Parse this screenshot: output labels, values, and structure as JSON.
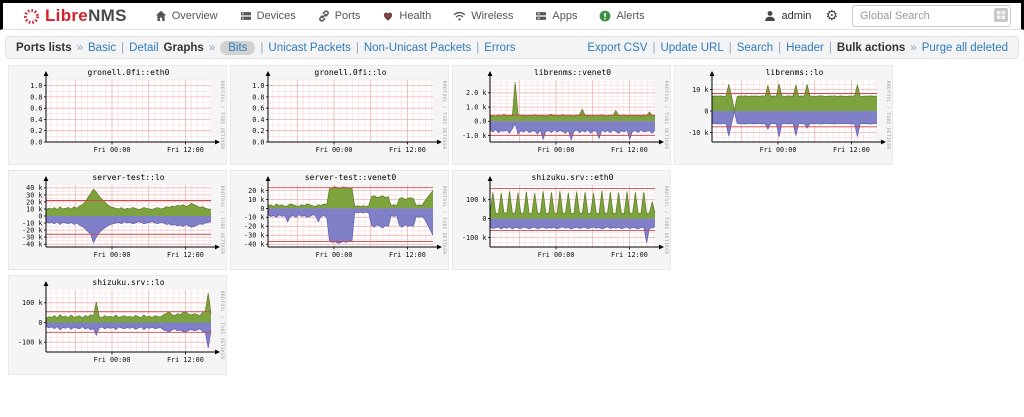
{
  "navbar": {
    "brand_libre": "Libre",
    "brand_nms": "NMS",
    "items": [
      {
        "label": "Overview",
        "icon": "home-icon"
      },
      {
        "label": "Devices",
        "icon": "devices-icon"
      },
      {
        "label": "Ports",
        "icon": "ports-icon"
      },
      {
        "label": "Health",
        "icon": "health-icon"
      },
      {
        "label": "Wireless",
        "icon": "wireless-icon"
      },
      {
        "label": "Apps",
        "icon": "apps-icon"
      },
      {
        "label": "Alerts",
        "icon": "alerts-icon"
      }
    ],
    "user": "admin",
    "search_placeholder": "Global Search"
  },
  "toolbar": {
    "left": [
      {
        "text": "Ports lists",
        "style": "label"
      },
      {
        "text": "»",
        "style": "sep"
      },
      {
        "text": "Basic",
        "style": "link"
      },
      {
        "text": "|",
        "style": "sep"
      },
      {
        "text": "Detail",
        "style": "link"
      },
      {
        "text": "Graphs",
        "style": "label"
      },
      {
        "text": "»",
        "style": "sep"
      },
      {
        "text": "Bits",
        "style": "active"
      },
      {
        "text": "|",
        "style": "sep"
      },
      {
        "text": "Unicast Packets",
        "style": "link"
      },
      {
        "text": "|",
        "style": "sep"
      },
      {
        "text": "Non-Unicast Packets",
        "style": "link"
      },
      {
        "text": "|",
        "style": "sep"
      },
      {
        "text": "Errors",
        "style": "link"
      }
    ],
    "right": [
      {
        "text": "Export CSV",
        "style": "link"
      },
      {
        "text": "|",
        "style": "sep"
      },
      {
        "text": "Update URL",
        "style": "link"
      },
      {
        "text": "|",
        "style": "sep"
      },
      {
        "text": "Search",
        "style": "link"
      },
      {
        "text": "|",
        "style": "sep"
      },
      {
        "text": "Header",
        "style": "link"
      },
      {
        "text": "|",
        "style": "sep"
      },
      {
        "text": "Bulk actions",
        "style": "label"
      },
      {
        "text": "»",
        "style": "sep"
      },
      {
        "text": "Purge all deleted",
        "style": "link"
      }
    ]
  },
  "colors": {
    "brand_red": "#d4212b",
    "link_blue": "#2e7bbd",
    "traffic_in_green": "#7CA33E",
    "traffic_out_purple": "#8080C8",
    "percentile_red": "#CC4A4A",
    "grid_minor": "#F7DCDC",
    "grid_major": "#F0B4B4",
    "alerts_green": "#3A9143"
  },
  "chart_common": {
    "type": "area",
    "x_ticks": [
      {
        "pos": 0.4,
        "label": "Fri 00:00"
      },
      {
        "pos": 0.845,
        "label": "Fri 12:00"
      }
    ],
    "x_major_grid": [
      0.1775,
      0.4,
      0.6225,
      0.845
    ],
    "watermark": "RRDTOOL / TOBI OETIKER",
    "unit_note": "values in k bits/s; series_in positive (green), series_out negative (purple)"
  },
  "chart_data": [
    {
      "title": "gronell.0fi::eth0",
      "y_ticks": [
        {
          "v": 1.0,
          "l": "1.0"
        },
        {
          "v": 0.8,
          "l": "0.8"
        },
        {
          "v": 0.6,
          "l": "0.6"
        },
        {
          "v": 0.4,
          "l": "0.4"
        },
        {
          "v": 0.2,
          "l": "0.2"
        },
        {
          "v": 0.0,
          "l": "0.0"
        }
      ],
      "ylim": [
        0,
        1.1
      ],
      "y_minor": 0.1,
      "red_lines": [],
      "series_in": [],
      "series_out": []
    },
    {
      "title": "gronell.0fi::lo",
      "y_ticks": [
        {
          "v": 1.0,
          "l": "1.0"
        },
        {
          "v": 0.8,
          "l": "0.8"
        },
        {
          "v": 0.6,
          "l": "0.6"
        },
        {
          "v": 0.4,
          "l": "0.4"
        },
        {
          "v": 0.2,
          "l": "0.2"
        },
        {
          "v": 0.0,
          "l": "0.0"
        }
      ],
      "ylim": [
        0,
        1.1
      ],
      "y_minor": 0.1,
      "red_lines": [],
      "series_in": [],
      "series_out": []
    },
    {
      "title": "librenms::venet0",
      "y_ticks": [
        {
          "v": 2.0,
          "l": "2.0 k"
        },
        {
          "v": 1.0,
          "l": "1.0 k"
        },
        {
          "v": 0.0,
          "l": "0.0"
        },
        {
          "v": -1.0,
          "l": "-1.0 k"
        }
      ],
      "ylim": [
        -1.45,
        2.9
      ],
      "y_minor": 0.25,
      "red_lines": [
        0.43,
        -0.98
      ],
      "series_in": [
        0.35,
        0.4,
        0.32,
        0.45,
        0.38,
        0.5,
        0.36,
        0.42,
        0.4,
        2.75,
        0.5,
        0.38,
        0.45,
        0.35,
        0.42,
        0.38,
        0.48,
        0.36,
        0.44,
        0.4,
        0.35,
        0.45,
        0.5,
        0.38,
        0.42,
        0.36,
        0.48,
        0.4,
        0.44,
        0.38,
        0.35,
        0.42,
        0.46,
        0.85,
        0.4,
        0.38,
        0.44,
        0.36,
        0.42,
        0.4,
        0.46,
        0.38,
        0.35,
        0.44,
        0.4,
        0.75,
        0.42,
        0.38,
        0.45,
        0.36,
        0.4,
        0.44,
        0.38,
        0.42,
        0.36,
        0.45,
        0.4,
        0.65,
        0.42,
        0.38
      ],
      "series_out": [
        -0.6,
        -0.75,
        -0.55,
        -0.8,
        -0.65,
        -0.7,
        -0.6,
        -0.85,
        -0.5,
        -0.15,
        -0.9,
        -0.65,
        -0.75,
        -0.6,
        -0.8,
        -0.7,
        -0.65,
        -0.9,
        -0.6,
        -1.25,
        -0.7,
        -0.65,
        -0.8,
        -0.6,
        -0.75,
        -0.65,
        -0.7,
        -0.85,
        -0.6,
        -1.3,
        -0.7,
        -0.6,
        -0.8,
        -0.65,
        -0.75,
        -0.6,
        -0.85,
        -0.65,
        -0.7,
        -1.2,
        -0.6,
        -0.75,
        -0.65,
        -0.8,
        -0.6,
        -0.7,
        -0.85,
        -0.65,
        -0.75,
        -0.6,
        -1.25,
        -0.7,
        -0.65,
        -0.8,
        -0.6,
        -0.75,
        -0.7,
        -0.65,
        -0.85,
        -0.6
      ]
    },
    {
      "title": "librenms::lo",
      "y_ticks": [
        {
          "v": 10,
          "l": "10 k"
        },
        {
          "v": 0,
          "l": "0"
        },
        {
          "v": -10,
          "l": "-10 k"
        }
      ],
      "ylim": [
        -14.5,
        14.5
      ],
      "y_minor": 2.5,
      "red_lines": [
        8.2,
        -7.4
      ],
      "series_in": [
        6.8,
        7.0,
        6.9,
        7.1,
        6.8,
        7.0,
        12.5,
        6.9,
        0.3,
        6.8,
        7.0,
        6.9,
        7.1,
        6.8,
        7.0,
        6.9,
        7.0,
        6.8,
        7.1,
        6.9,
        12.0,
        6.8,
        7.0,
        6.9,
        12.6,
        7.0,
        6.8,
        7.1,
        6.9,
        7.0,
        12.2,
        6.8,
        7.0,
        6.9,
        12.4,
        7.0,
        6.9,
        6.8,
        7.0,
        7.1,
        6.9,
        6.8,
        7.0,
        6.9,
        7.1,
        6.8,
        7.0,
        6.9,
        6.8,
        7.0,
        6.9,
        7.1,
        12.3,
        6.9,
        6.8,
        7.0,
        6.9,
        7.1,
        6.8,
        7.0
      ],
      "series_out": [
        -5.8,
        -6.0,
        -5.9,
        -6.1,
        -5.8,
        -6.0,
        -11.8,
        -5.9,
        -0.2,
        -5.8,
        -6.0,
        -5.9,
        -6.1,
        -5.8,
        -6.0,
        -5.9,
        -6.0,
        -5.8,
        -6.1,
        -5.9,
        -8.5,
        -5.8,
        -6.0,
        -5.9,
        -12.0,
        -6.0,
        -5.8,
        -6.1,
        -5.9,
        -6.0,
        -11.5,
        -5.8,
        -6.0,
        -5.9,
        -8.0,
        -6.0,
        -5.9,
        -5.8,
        -6.0,
        -6.1,
        -5.9,
        -5.8,
        -6.0,
        -5.9,
        -6.1,
        -5.8,
        -6.0,
        -5.9,
        -5.8,
        -6.0,
        -5.9,
        -6.1,
        -11.9,
        -5.9,
        -5.8,
        -6.0,
        -5.9,
        -6.1,
        -5.8,
        -6.0
      ]
    },
    {
      "title": "server-test::lo",
      "y_ticks": [
        {
          "v": 40,
          "l": "40 k"
        },
        {
          "v": 30,
          "l": "30 k"
        },
        {
          "v": 20,
          "l": "20 k"
        },
        {
          "v": 10,
          "l": "10 k"
        },
        {
          "v": 0,
          "l": "0"
        },
        {
          "v": -10,
          "l": "-10 k"
        },
        {
          "v": -20,
          "l": "-20 k"
        },
        {
          "v": -30,
          "l": "-30 k"
        },
        {
          "v": -40,
          "l": "-40 k"
        }
      ],
      "ylim": [
        -44,
        44
      ],
      "y_minor": 5,
      "red_lines": [
        22,
        -26
      ],
      "series_in": [
        9,
        11,
        10,
        12,
        9,
        13,
        10,
        11,
        12,
        10,
        13,
        11,
        14,
        16,
        20,
        26,
        32,
        38,
        34,
        28,
        24,
        20,
        16,
        13,
        12,
        11,
        10,
        12,
        9,
        11,
        10,
        12,
        11,
        9,
        10,
        12,
        11,
        10,
        9,
        11,
        12,
        10,
        11,
        13,
        12,
        14,
        13,
        15,
        14,
        16,
        13,
        15,
        18,
        16,
        14,
        12,
        13,
        11,
        10,
        9
      ],
      "series_out": [
        -8,
        -10,
        -9,
        -11,
        -8,
        -12,
        -9,
        -10,
        -11,
        -9,
        -12,
        -10,
        -13,
        -15,
        -18,
        -22,
        -26,
        -38,
        -30,
        -24,
        -20,
        -17,
        -14,
        -12,
        -11,
        -10,
        -9,
        -11,
        -8,
        -10,
        -9,
        -11,
        -10,
        -8,
        -9,
        -11,
        -10,
        -9,
        -8,
        -10,
        -11,
        -9,
        -10,
        -12,
        -11,
        -13,
        -12,
        -14,
        -13,
        -15,
        -12,
        -14,
        -16,
        -15,
        -13,
        -11,
        -12,
        -10,
        -9,
        -8
      ]
    },
    {
      "title": "server-test::venet0",
      "y_ticks": [
        {
          "v": 20,
          "l": "20 k"
        },
        {
          "v": 10,
          "l": "10 k"
        },
        {
          "v": 0,
          "l": "0"
        },
        {
          "v": -10,
          "l": "-10 k"
        },
        {
          "v": -20,
          "l": "-20 k"
        },
        {
          "v": -30,
          "l": "-30 k"
        },
        {
          "v": -40,
          "l": "-40 k"
        }
      ],
      "ylim": [
        -43,
        26
      ],
      "y_minor": 5,
      "red_lines": [
        23,
        -37
      ],
      "series_in": [
        3,
        4,
        2,
        5,
        3,
        4,
        2,
        3,
        5,
        4,
        3,
        2,
        4,
        3,
        5,
        4,
        3,
        2,
        4,
        3,
        5,
        4,
        22,
        23,
        24,
        23,
        22,
        24,
        23,
        22,
        23,
        2,
        3,
        2,
        3,
        2,
        3,
        13,
        14,
        12,
        13,
        14,
        12,
        13,
        3,
        4,
        3,
        11,
        12,
        10,
        11,
        12,
        11,
        3,
        4,
        3,
        8,
        12,
        16,
        20
      ],
      "series_out": [
        -7,
        -9,
        -8,
        -10,
        -7,
        -9,
        -8,
        -15,
        -9,
        -8,
        -10,
        -7,
        -9,
        -8,
        -10,
        -9,
        -7,
        -8,
        -15,
        -9,
        -8,
        -10,
        -36,
        -38,
        -37,
        -39,
        -38,
        -37,
        -38,
        -36,
        -37,
        -4,
        -5,
        -4,
        -5,
        -4,
        -5,
        -19,
        -21,
        -18,
        -20,
        -22,
        -19,
        -20,
        -8,
        -9,
        -8,
        -19,
        -21,
        -18,
        -20,
        -19,
        -20,
        -9,
        -10,
        -9,
        -12,
        -18,
        -24,
        -30
      ]
    },
    {
      "title": "shizuku.srv::eth0",
      "y_ticks": [
        {
          "v": 100,
          "l": "100 k"
        },
        {
          "v": 0,
          "l": "0"
        },
        {
          "v": -100,
          "l": "-100 k"
        }
      ],
      "ylim": [
        -150,
        178
      ],
      "y_minor": 25,
      "red_lines": [
        160,
        -62
      ],
      "series_in": [
        28,
        140,
        30,
        26,
        135,
        32,
        29,
        145,
        27,
        31,
        138,
        28,
        30,
        142,
        26,
        29,
        136,
        31,
        27,
        144,
        29,
        28,
        139,
        30,
        26,
        146,
        28,
        31,
        137,
        27,
        29,
        143,
        30,
        28,
        140,
        26,
        30,
        135,
        29,
        27,
        148,
        28,
        31,
        141,
        27,
        29,
        138,
        30,
        26,
        144,
        28,
        30,
        139,
        27,
        29,
        142,
        26,
        31,
        90,
        30
      ],
      "series_out": [
        -45,
        -52,
        -48,
        -44,
        -55,
        -47,
        -50,
        -43,
        -54,
        -46,
        -49,
        -52,
        -44,
        -48,
        -55,
        -47,
        -45,
        -53,
        -49,
        -44,
        -52,
        -47,
        -50,
        -45,
        -54,
        -48,
        -43,
        -51,
        -46,
        -55,
        -49,
        -44,
        -52,
        -47,
        -45,
        -53,
        -48,
        -44,
        -51,
        -46,
        -55,
        -49,
        -43,
        -52,
        -47,
        -50,
        -45,
        -54,
        -48,
        -44,
        -53,
        -46,
        -49,
        -55,
        -47,
        -45,
        -128,
        -52,
        -48,
        -44
      ]
    },
    {
      "title": "shizuku.srv::lo",
      "y_ticks": [
        {
          "v": 100,
          "l": "100 k"
        },
        {
          "v": 0,
          "l": "0"
        },
        {
          "v": -100,
          "l": "-100 k"
        }
      ],
      "ylim": [
        -150,
        165
      ],
      "y_minor": 25,
      "red_lines": [
        55,
        -50
      ],
      "series_in": [
        20,
        30,
        25,
        35,
        22,
        40,
        28,
        32,
        24,
        38,
        26,
        30,
        34,
        22,
        36,
        28,
        40,
        32,
        105,
        30,
        24,
        35,
        28,
        32,
        26,
        38,
        24,
        30,
        35,
        28,
        32,
        26,
        36,
        30,
        24,
        38,
        28,
        32,
        26,
        35,
        30,
        28,
        40,
        45,
        55,
        40,
        35,
        45,
        40,
        50,
        55,
        42,
        38,
        45,
        40,
        35,
        50,
        60,
        150,
        45
      ],
      "series_out": [
        -18,
        -28,
        -22,
        -32,
        -20,
        -38,
        -25,
        -30,
        -22,
        -35,
        -24,
        -28,
        -32,
        -20,
        -34,
        -26,
        -38,
        -30,
        -65,
        -28,
        -22,
        -32,
        -26,
        -30,
        -24,
        -36,
        -22,
        -28,
        -32,
        -26,
        -30,
        -24,
        -34,
        -28,
        -22,
        -36,
        -26,
        -30,
        -24,
        -32,
        -28,
        -26,
        -38,
        -42,
        -50,
        -38,
        -32,
        -42,
        -38,
        -46,
        -50,
        -40,
        -35,
        -42,
        -38,
        -32,
        -46,
        -55,
        -130,
        -42
      ]
    }
  ]
}
